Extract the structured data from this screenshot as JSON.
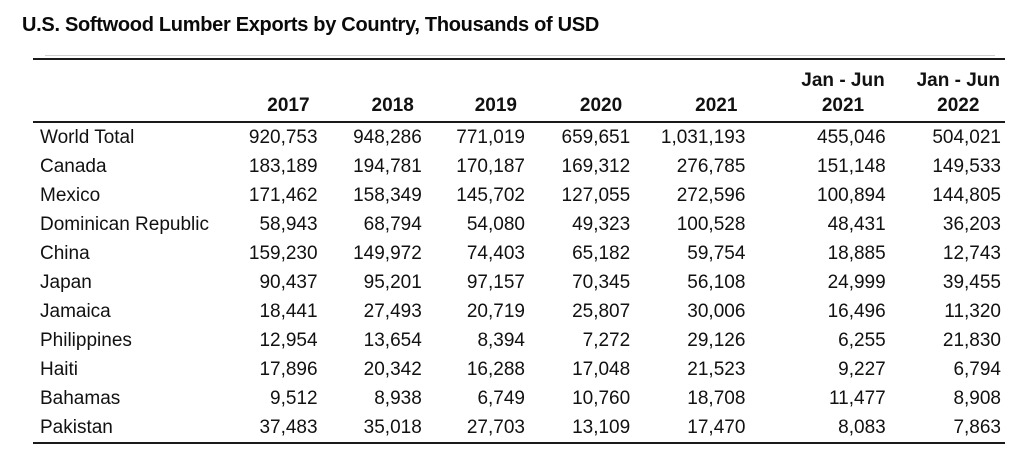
{
  "title": "U.S. Softwood Lumber Exports by Country, Thousands of USD",
  "table": {
    "columns": [
      {
        "top": "",
        "year": "2017"
      },
      {
        "top": "",
        "year": "2018"
      },
      {
        "top": "",
        "year": "2019"
      },
      {
        "top": "",
        "year": "2020"
      },
      {
        "top": "",
        "year": "2021"
      },
      {
        "top": "Jan - Jun",
        "year": "2021"
      },
      {
        "top": "Jan - Jun",
        "year": "2022"
      }
    ],
    "rows": [
      {
        "country": "World Total",
        "values": [
          "920,753",
          "948,286",
          "771,019",
          "659,651",
          "1,031,193",
          "455,046",
          "504,021"
        ]
      },
      {
        "country": "Canada",
        "values": [
          "183,189",
          "194,781",
          "170,187",
          "169,312",
          "276,785",
          "151,148",
          "149,533"
        ]
      },
      {
        "country": "Mexico",
        "values": [
          "171,462",
          "158,349",
          "145,702",
          "127,055",
          "272,596",
          "100,894",
          "144,805"
        ]
      },
      {
        "country": "Dominican Republic",
        "values": [
          "58,943",
          "68,794",
          "54,080",
          "49,323",
          "100,528",
          "48,431",
          "36,203"
        ]
      },
      {
        "country": "China",
        "values": [
          "159,230",
          "149,972",
          "74,403",
          "65,182",
          "59,754",
          "18,885",
          "12,743"
        ]
      },
      {
        "country": "Japan",
        "values": [
          "90,437",
          "95,201",
          "97,157",
          "70,345",
          "56,108",
          "24,999",
          "39,455"
        ]
      },
      {
        "country": "Jamaica",
        "values": [
          "18,441",
          "27,493",
          "20,719",
          "25,807",
          "30,006",
          "16,496",
          "11,320"
        ]
      },
      {
        "country": "Philippines",
        "values": [
          "12,954",
          "13,654",
          "8,394",
          "7,272",
          "29,126",
          "6,255",
          "21,830"
        ]
      },
      {
        "country": "Haiti",
        "values": [
          "17,896",
          "20,342",
          "16,288",
          "17,048",
          "21,523",
          "9,227",
          "6,794"
        ]
      },
      {
        "country": "Bahamas",
        "values": [
          "9,512",
          "8,938",
          "6,749",
          "10,760",
          "18,708",
          "11,477",
          "8,908"
        ]
      },
      {
        "country": "Pakistan",
        "values": [
          "37,483",
          "35,018",
          "27,703",
          "13,109",
          "17,470",
          "8,083",
          "7,863"
        ]
      }
    ],
    "colors": {
      "rule": "#1a1a1a",
      "text": "#111111",
      "faint_gridline": "#cfcfcf",
      "background": "#ffffff"
    }
  }
}
